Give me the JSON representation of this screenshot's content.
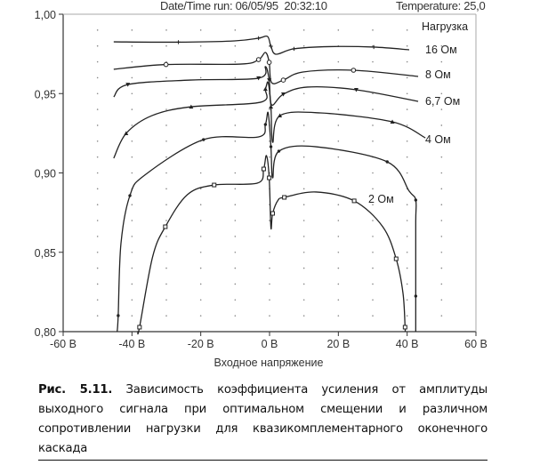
{
  "header": {
    "run_info": "Date/Time run: 06/05/95  20:32:10",
    "temperature": "Temperature: 25,0"
  },
  "caption": {
    "figure_label": "Рис. 5.11.",
    "text": "Зависимость коэффициента усиления от амплитуды выходного сигнала при оптимальном смещении и различном сопротивлении нагрузки для квазикомплементарного оконечного каскада"
  },
  "chart_data": {
    "type": "line",
    "title": "",
    "xlabel": "Входное напряжение",
    "ylabel": "",
    "xlim": [
      -60,
      60
    ],
    "ylim": [
      0.8,
      1.0
    ],
    "x_ticks": [
      -60,
      -40,
      -20,
      0,
      20,
      40,
      60
    ],
    "x_tick_labels": [
      "-60 В",
      "-40 В",
      "-20 В",
      "0 В",
      "20 В",
      "40 В",
      "60 В"
    ],
    "y_ticks": [
      0.8,
      0.85,
      0.9,
      0.95,
      1.0
    ],
    "y_tick_labels": [
      "0,80",
      "0,85",
      "0,90",
      "0,95",
      "1,00"
    ],
    "grid": "dotted",
    "legend_title": "Нагрузка",
    "line_color": "#222222",
    "series": [
      {
        "name": "16 Ом",
        "marker": "plus",
        "points": [
          [
            -45.3,
            0.9826
          ],
          [
            -26.5,
            0.9824
          ],
          [
            -10.2,
            0.9832
          ],
          [
            -3.2,
            0.9849
          ],
          [
            -0.6,
            0.986
          ],
          [
            0.4,
            0.9798
          ],
          [
            1.9,
            0.9748
          ],
          [
            7.1,
            0.9782
          ],
          [
            17.4,
            0.9796
          ],
          [
            30.3,
            0.9793
          ],
          [
            40.6,
            0.9776
          ]
        ]
      },
      {
        "name": "8 Ом",
        "marker": "circle",
        "points": [
          [
            -45.3,
            0.9653
          ],
          [
            -30.1,
            0.9683
          ],
          [
            -8.4,
            0.9686
          ],
          [
            -3.2,
            0.9714
          ],
          [
            -1.2,
            0.9759
          ],
          [
            -0.1,
            0.9697
          ],
          [
            0.6,
            0.9569
          ],
          [
            4.0,
            0.9585
          ],
          [
            9.7,
            0.9636
          ],
          [
            24.4,
            0.9647
          ],
          [
            43.2,
            0.9608
          ]
        ]
      },
      {
        "name": "6,7 Ом",
        "marker": "triangle-down",
        "points": [
          [
            -45.3,
            0.9479
          ],
          [
            -41.2,
            0.9557
          ],
          [
            -23.1,
            0.9585
          ],
          [
            -3.2,
            0.9597
          ],
          [
            -1.2,
            0.967
          ],
          [
            -0.1,
            0.9585
          ],
          [
            0.6,
            0.9429
          ],
          [
            4.0,
            0.9496
          ],
          [
            11.0,
            0.9541
          ],
          [
            25.2,
            0.9524
          ],
          [
            43.2,
            0.9451
          ]
        ]
      },
      {
        "name": "4 Ом",
        "marker": "triangle-up",
        "points": [
          [
            -45.3,
            0.9093
          ],
          [
            -41.7,
            0.9249
          ],
          [
            -34.2,
            0.9361
          ],
          [
            -22.8,
            0.9417
          ],
          [
            -2.7,
            0.9445
          ],
          [
            -1.2,
            0.9529
          ],
          [
            -0.4,
            0.9569
          ],
          [
            0.4,
            0.9417
          ],
          [
            0.9,
            0.9193
          ],
          [
            3.0,
            0.9361
          ],
          [
            14.8,
            0.9378
          ],
          [
            35.7,
            0.9322
          ],
          [
            45.3,
            0.9221
          ]
        ]
      },
      {
        "name": "",
        "marker": "dot",
        "points": [
          [
            -44.3,
            0.8
          ],
          [
            -44.0,
            0.8101
          ],
          [
            -43.2,
            0.8555
          ],
          [
            -40.6,
            0.8857
          ],
          [
            -36.3,
            0.8986
          ],
          [
            -19.2,
            0.921
          ],
          [
            -3.2,
            0.9227
          ],
          [
            -1.2,
            0.9305
          ],
          [
            -0.4,
            0.9378
          ],
          [
            0.4,
            0.9165
          ],
          [
            0.9,
            0.8969
          ],
          [
            2.7,
            0.9137
          ],
          [
            13.5,
            0.9165
          ],
          [
            34.2,
            0.907
          ],
          [
            40.6,
            0.8885
          ],
          [
            42.5,
            0.8829
          ],
          [
            42.5,
            0.8689
          ],
          [
            42.5,
            0.8224
          ],
          [
            42.5,
            0.8
          ]
        ]
      },
      {
        "name": "2 Ом",
        "marker": "square",
        "points": [
          [
            -38.3,
            0.8
          ],
          [
            -37.8,
            0.8028
          ],
          [
            -34.0,
            0.8471
          ],
          [
            -30.3,
            0.8661
          ],
          [
            -23.9,
            0.8863
          ],
          [
            -16.1,
            0.8924
          ],
          [
            -3.5,
            0.8936
          ],
          [
            -1.7,
            0.9025
          ],
          [
            -0.9,
            0.9109
          ],
          [
            -0.1,
            0.8969
          ],
          [
            0.4,
            0.8655
          ],
          [
            0.9,
            0.8745
          ],
          [
            2.5,
            0.8829
          ],
          [
            4.3,
            0.8846
          ],
          [
            13.5,
            0.888
          ],
          [
            24.6,
            0.8824
          ],
          [
            32.9,
            0.8661
          ],
          [
            36.8,
            0.8459
          ],
          [
            38.8,
            0.8241
          ],
          [
            39.4,
            0.8028
          ],
          [
            39.4,
            0.8
          ]
        ]
      }
    ]
  }
}
